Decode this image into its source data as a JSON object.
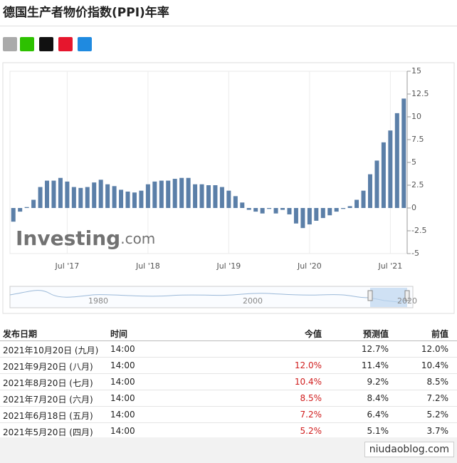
{
  "header": {
    "title": "德国生产者物价指数(PPI)年率"
  },
  "chart_data": {
    "type": "bar",
    "color": "#5b7fa8",
    "watermark": "Investing",
    "watermark_suffix": ".com",
    "categories": [
      null,
      null,
      null,
      null,
      null,
      null,
      null,
      null,
      "Jul '17",
      null,
      null,
      null,
      null,
      null,
      null,
      null,
      null,
      null,
      null,
      null,
      "Jul '18",
      null,
      null,
      null,
      null,
      null,
      null,
      null,
      null,
      null,
      null,
      null,
      "Jul '19",
      null,
      null,
      null,
      null,
      null,
      null,
      null,
      null,
      null,
      null,
      null,
      "Jul '20",
      null,
      null,
      null,
      null,
      null,
      null,
      null,
      null,
      null,
      null,
      null,
      "Jul '21",
      null,
      null
    ],
    "values": [
      -1.5,
      -0.4,
      0.1,
      0.9,
      2.3,
      3.0,
      3.0,
      3.3,
      2.9,
      2.3,
      2.2,
      2.3,
      2.8,
      3.1,
      2.6,
      2.4,
      2.0,
      1.8,
      1.7,
      1.9,
      2.6,
      2.9,
      3.0,
      3.0,
      3.2,
      3.3,
      3.3,
      2.6,
      2.6,
      2.5,
      2.5,
      2.3,
      1.9,
      1.3,
      0.6,
      -0.2,
      -0.4,
      -0.6,
      -0.1,
      -0.6,
      -0.2,
      -0.7,
      -1.7,
      -2.2,
      -1.8,
      -1.4,
      -1.1,
      -0.8,
      -0.4,
      -0.1,
      0.2,
      0.9,
      1.9,
      3.7,
      5.2,
      7.2,
      8.5,
      10.4,
      12.0
    ],
    "ylim": [
      -5,
      15
    ],
    "yticks": [
      15,
      12.5,
      10,
      7.5,
      5,
      2.5,
      0,
      -2.5,
      -5
    ],
    "navigator_labels": [
      "1980",
      "2000",
      "2020"
    ]
  },
  "table": {
    "columns": [
      "发布日期",
      "时间",
      "今值",
      "预测值",
      "前值"
    ],
    "rows": [
      {
        "date": "2021年10月20日 (九月)",
        "time": "14:00",
        "forecast": "12.7%",
        "previous": "12.0%"
      },
      {
        "date": "2021年9月20日 (八月)",
        "time": "14:00",
        "actual": "12.0%",
        "forecast": "11.4%",
        "previous": "10.4%"
      },
      {
        "date": "2021年8月20日 (七月)",
        "time": "14:00",
        "actual": "10.4%",
        "forecast": "9.2%",
        "previous": "8.5%"
      },
      {
        "date": "2021年7月20日 (六月)",
        "time": "14:00",
        "actual": "8.5%",
        "forecast": "8.4%",
        "previous": "7.2%"
      },
      {
        "date": "2021年6月18日 (五月)",
        "time": "14:00",
        "actual": "7.2%",
        "forecast": "6.4%",
        "previous": "5.2%"
      },
      {
        "date": "2021年5月20日 (四月)",
        "time": "14:00",
        "actual": "5.2%",
        "forecast": "5.1%",
        "previous": "3.7%"
      }
    ]
  },
  "footer": {
    "watermark": "niudaoblog.com"
  }
}
